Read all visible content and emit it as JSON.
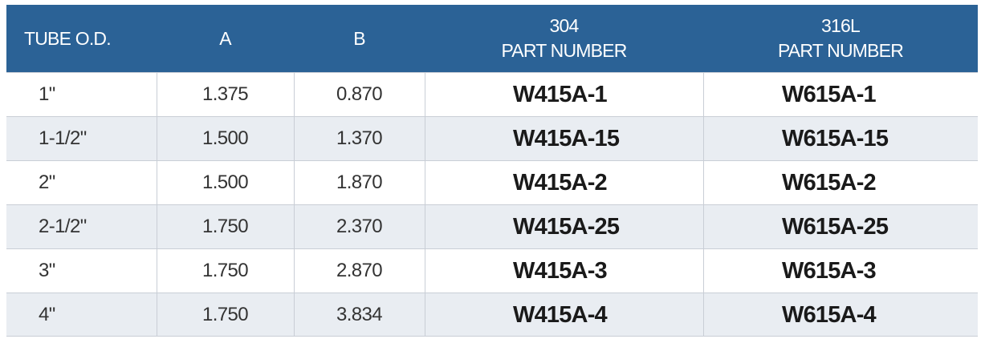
{
  "table": {
    "header": [
      [
        "TUBE O.D."
      ],
      [
        "A"
      ],
      [
        "B"
      ],
      [
        "304",
        "PART NUMBER"
      ],
      [
        "316L",
        "PART NUMBER"
      ]
    ],
    "rows": [
      [
        "1\"",
        "1.375",
        "0.870",
        "W415A-1",
        "W615A-1"
      ],
      [
        "1-1/2\"",
        "1.500",
        "1.370",
        "W415A-15",
        "W615A-15"
      ],
      [
        "2\"",
        "1.500",
        "1.870",
        "W415A-2",
        "W615A-2"
      ],
      [
        "2-1/2\"",
        "1.750",
        "2.370",
        "W415A-25",
        "W615A-25"
      ],
      [
        "3\"",
        "1.750",
        "2.870",
        "W415A-3",
        "W615A-3"
      ],
      [
        "4\"",
        "1.750",
        "3.834",
        "W415A-4",
        "W615A-4"
      ]
    ]
  }
}
